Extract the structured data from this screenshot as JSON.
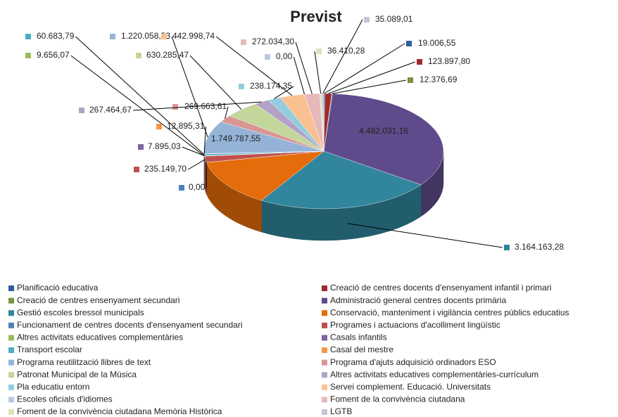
{
  "chart_data": {
    "type": "pie",
    "title": "Previst",
    "categories": [
      "Planificació educativa",
      "Creació de centres docents d'ensenyament infantil i primari",
      "Creació de centres ensenyament secundari",
      "Administració general centres docents primària",
      "Gestió escoles bressol municipals",
      "Conservació, manteniment i vigilància centres públics educatius",
      "Funcionament de centres docents d'ensenyament secundari",
      "Programes i actuacions d'acolliment lingüístic",
      "Altres activitats educatives complementàries",
      "Casals infantils",
      "Transport escolar",
      "Casal del mestre",
      "Programa reutilització llibres de text",
      "Programa d'ajuts adquisició ordinadors ESO",
      "Patronat Municipal de la Música",
      "Altres activitats educatives complementàries-currículum",
      "Pla educatiu entorn",
      "Servei complement. Educació. Universitats",
      "Escoles oficials d'idiomes",
      "Foment de la convivència ciutadana",
      "Foment de la convivència ciutadana Memòria Històrica",
      "LGTB"
    ],
    "values": [
      19006.55,
      123897.8,
      12376.69,
      4482031.16,
      3164163.28,
      1749787.55,
      0,
      235149.7,
      9656.07,
      7895.03,
      60683.79,
      12895.31,
      1220058.53,
      269663.61,
      630285.47,
      267464.67,
      238174.35,
      442998.74,
      0,
      272034.3,
      36410.28,
      35089.01
    ],
    "value_labels": [
      "19.006,55",
      "123.897,80",
      "12.376,69",
      "4.482.031,16",
      "3.164.163,28",
      "1.749.787,55",
      "0,00",
      "235.149,70",
      "9.656,07",
      "7.895,03",
      "60.683,79",
      "12.895,31",
      "1.220.058,53",
      "269.663,61",
      "630.285,47",
      "267.464,67",
      "238.174,35",
      "442.998,74",
      "0,00",
      "272.034,30",
      "36.410,28",
      "35.089,01"
    ],
    "colors": [
      "#2e5f9a",
      "#9e2a2a",
      "#77933c",
      "#5f4b8b",
      "#31859c",
      "#e46c0a",
      "#4f81bd",
      "#c0504d",
      "#9bbb59",
      "#8064a2",
      "#4bacc6",
      "#f79646",
      "#95b3d7",
      "#d99694",
      "#c3d69b",
      "#b3a2c7",
      "#93cddd",
      "#fac090",
      "#b9c8e1",
      "#e6b9b8",
      "#d7e4bd",
      "#ccc1da"
    ]
  }
}
